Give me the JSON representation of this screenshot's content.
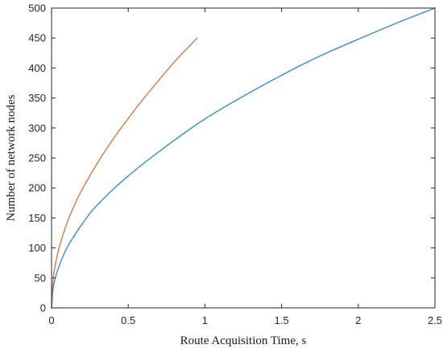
{
  "chart_data": {
    "type": "line",
    "title": "",
    "xlabel": "Route Acquisition Time, s",
    "ylabel": "Number of network nodes",
    "xlim": [
      0,
      2.5
    ],
    "ylim": [
      0,
      500
    ],
    "xticks": [
      "0",
      "0.5",
      "1",
      "1.5",
      "2",
      "2.5"
    ],
    "yticks": [
      "0",
      "50",
      "100",
      "150",
      "200",
      "250",
      "300",
      "350",
      "400",
      "450",
      "500"
    ],
    "grid": false,
    "legend": "none",
    "series": [
      {
        "color": "#d97a48",
        "x": [
          0,
          0.01,
          0.025,
          0.05,
          0.1,
          0.15,
          0.2,
          0.3,
          0.4,
          0.5,
          0.6,
          0.7,
          0.8,
          0.9,
          0.95
        ],
        "y": [
          0,
          48,
          72,
          101,
          141,
          172,
          198,
          242,
          281,
          316,
          349,
          380,
          410,
          437,
          450
        ]
      },
      {
        "color": "#3c8fc4",
        "x": [
          0,
          0.01,
          0.025,
          0.05,
          0.1,
          0.2,
          0.3,
          0.5,
          0.75,
          1.0,
          1.25,
          1.5,
          1.75,
          2.0,
          2.25,
          2.5
        ],
        "y": [
          0,
          32,
          50,
          70,
          100,
          140,
          172,
          220,
          270,
          315,
          353,
          388,
          420,
          448,
          475,
          500
        ]
      }
    ]
  }
}
